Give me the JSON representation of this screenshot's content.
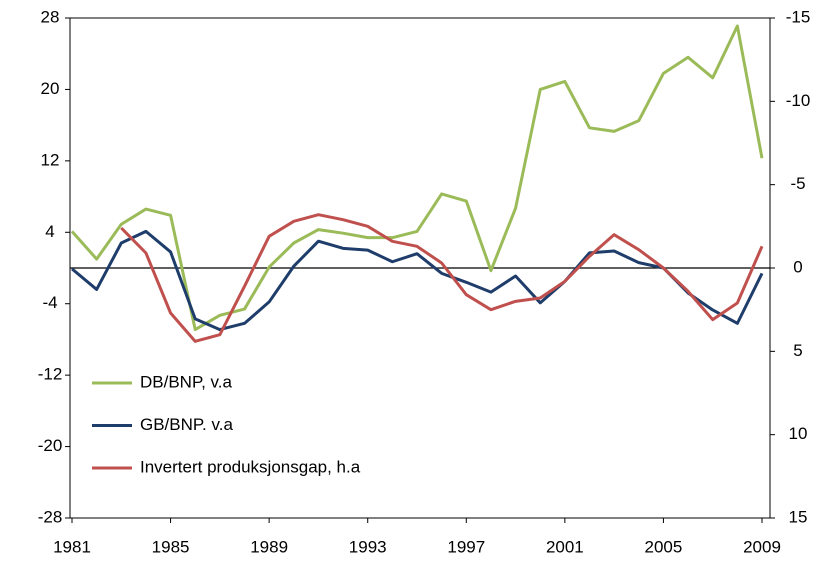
{
  "chart_data": {
    "type": "line",
    "x": [
      1981,
      1982,
      1983,
      1984,
      1985,
      1986,
      1987,
      1988,
      1989,
      1990,
      1991,
      1992,
      1993,
      1994,
      1995,
      1996,
      1997,
      1998,
      1999,
      2000,
      2001,
      2002,
      2003,
      2004,
      2005,
      2006,
      2007,
      2008,
      2009
    ],
    "xlim": [
      1981,
      2009
    ],
    "xticks": [
      1981,
      1985,
      1989,
      1993,
      1997,
      2001,
      2005,
      2009
    ],
    "ylim": [
      -28,
      28
    ],
    "yticks": [
      -28,
      -20,
      -12,
      -4,
      4,
      12,
      20,
      28
    ],
    "y2lim": [
      15,
      -15
    ],
    "y2ticks": [
      -15,
      -10,
      -5,
      0,
      5,
      10,
      15
    ],
    "legend": "lower left",
    "series": [
      {
        "name": "DB/BNP, v.a",
        "color": "#9bbb59",
        "values": [
          4.1,
          1.0,
          4.9,
          6.6,
          5.9,
          -6.9,
          -5.3,
          -4.6,
          0.1,
          2.8,
          4.3,
          3.9,
          3.4,
          3.4,
          4.1,
          8.3,
          7.5,
          -0.3,
          6.7,
          20.0,
          20.9,
          15.7,
          15.3,
          16.5,
          21.8,
          23.6,
          21.3,
          27.1,
          12.3
        ]
      },
      {
        "name": "GB/BNP. v.a",
        "color": "#1f3d6b",
        "values": [
          -0.1,
          -2.4,
          2.8,
          4.1,
          1.8,
          -5.7,
          -6.9,
          -6.2,
          -3.8,
          0.2,
          3.0,
          2.2,
          2.0,
          0.7,
          1.6,
          -0.6,
          -1.6,
          -2.7,
          -0.9,
          -3.9,
          -1.5,
          1.7,
          1.9,
          0.6,
          0,
          -2.8,
          -4.7,
          -6.2,
          -0.6
        ]
      },
      {
        "name": "Invertert produksjonsgap,  h.a",
        "color": "#c0504d",
        "axis": "y2",
        "values": [
          null,
          null,
          -2.4,
          -0.9,
          2.7,
          4.4,
          4.0,
          1.1,
          -1.9,
          -2.8,
          -3.2,
          -2.9,
          -2.5,
          -1.6,
          -1.3,
          -0.3,
          1.6,
          2.5,
          2.0,
          1.8,
          0.8,
          -0.7,
          -2.0,
          -1.1,
          0,
          1.4,
          3.1,
          2.1,
          -1.3
        ]
      }
    ]
  }
}
